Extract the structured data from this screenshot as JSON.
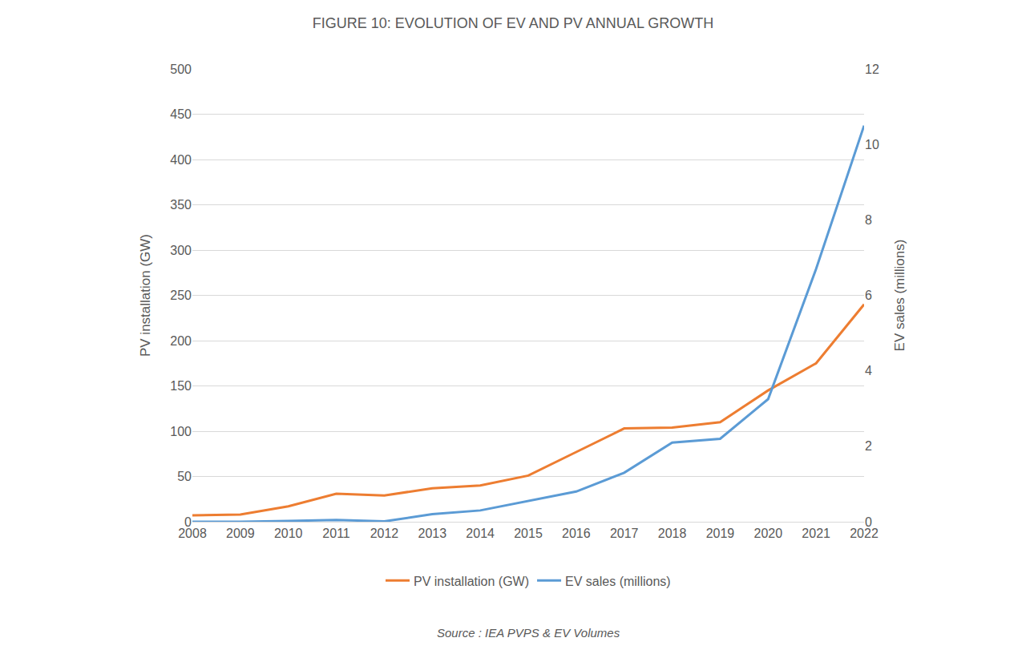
{
  "chart_data": {
    "type": "line",
    "title": "FIGURE 10: EVOLUTION OF EV AND PV ANNUAL GROWTH",
    "y_label": "PV installation (GW)",
    "y2_label": "EV sales (millions)",
    "annotations": [
      "Source : IEA PVPS & EV Volumes"
    ],
    "categories": [
      "2008",
      "2009",
      "2010",
      "2011",
      "2012",
      "2013",
      "2014",
      "2015",
      "2016",
      "2017",
      "2018",
      "2019",
      "2020",
      "2021",
      "2022"
    ],
    "series": [
      {
        "name": "PV installation (GW)",
        "color": "#ed7d31",
        "values": [
          7,
          8,
          17,
          31,
          29,
          37,
          40,
          51,
          77,
          103,
          104,
          110,
          145,
          175,
          240
        ]
      },
      {
        "name": "EV sales (millions)",
        "color": "#5b9bd5",
        "axis": "y2",
        "values": [
          0.0,
          0.0,
          0.02,
          0.05,
          0.01,
          0.2,
          0.3,
          0.55,
          0.8,
          1.3,
          2.1,
          2.2,
          3.25,
          6.7,
          10.5
        ]
      }
    ],
    "ylim": [
      0,
      500
    ],
    "yticks": [
      0,
      50,
      100,
      150,
      200,
      250,
      300,
      350,
      400,
      450,
      500
    ],
    "y2lim": [
      0,
      12
    ],
    "y2ticks": [
      0,
      2,
      4,
      6,
      8,
      10,
      12
    ],
    "grid": true,
    "legend": "bottom"
  }
}
